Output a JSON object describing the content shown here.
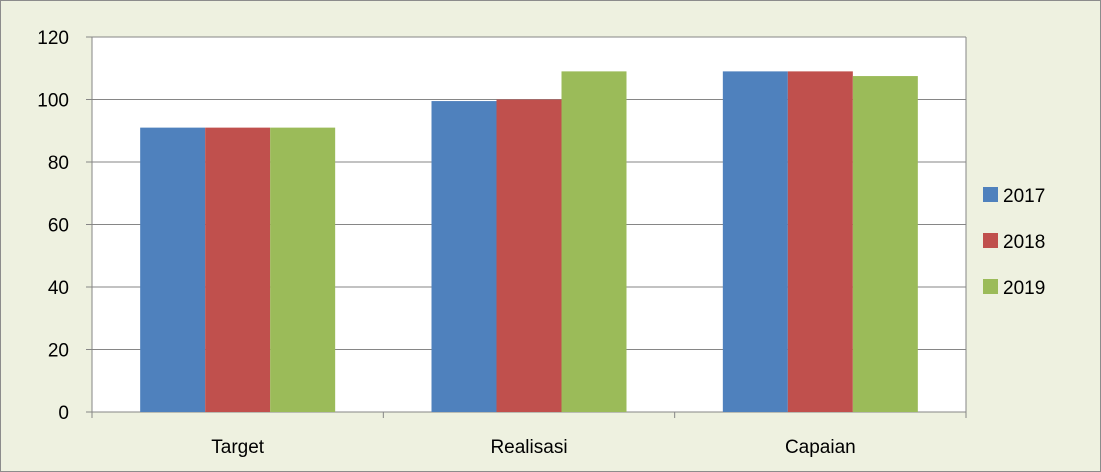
{
  "chart_data": {
    "type": "bar",
    "title": "",
    "xlabel": "",
    "ylabel": "",
    "categories": [
      "Target",
      "Realisasi",
      "Capaian"
    ],
    "series": [
      {
        "name": "2017",
        "color": "#4f81bd",
        "values": [
          91,
          99.5,
          109
        ]
      },
      {
        "name": "2018",
        "color": "#c0504d",
        "values": [
          91,
          100,
          109
        ]
      },
      {
        "name": "2019",
        "color": "#9bbb59",
        "values": [
          91,
          109,
          107.5
        ]
      }
    ],
    "ylim": [
      0,
      120
    ],
    "yticks": [
      0,
      20,
      40,
      60,
      80,
      100,
      120
    ],
    "grid": true,
    "legend_position": "right"
  },
  "colors": {
    "chart_background": "#eef1e0",
    "plot_background": "#ffffff",
    "gridline": "#868686"
  }
}
